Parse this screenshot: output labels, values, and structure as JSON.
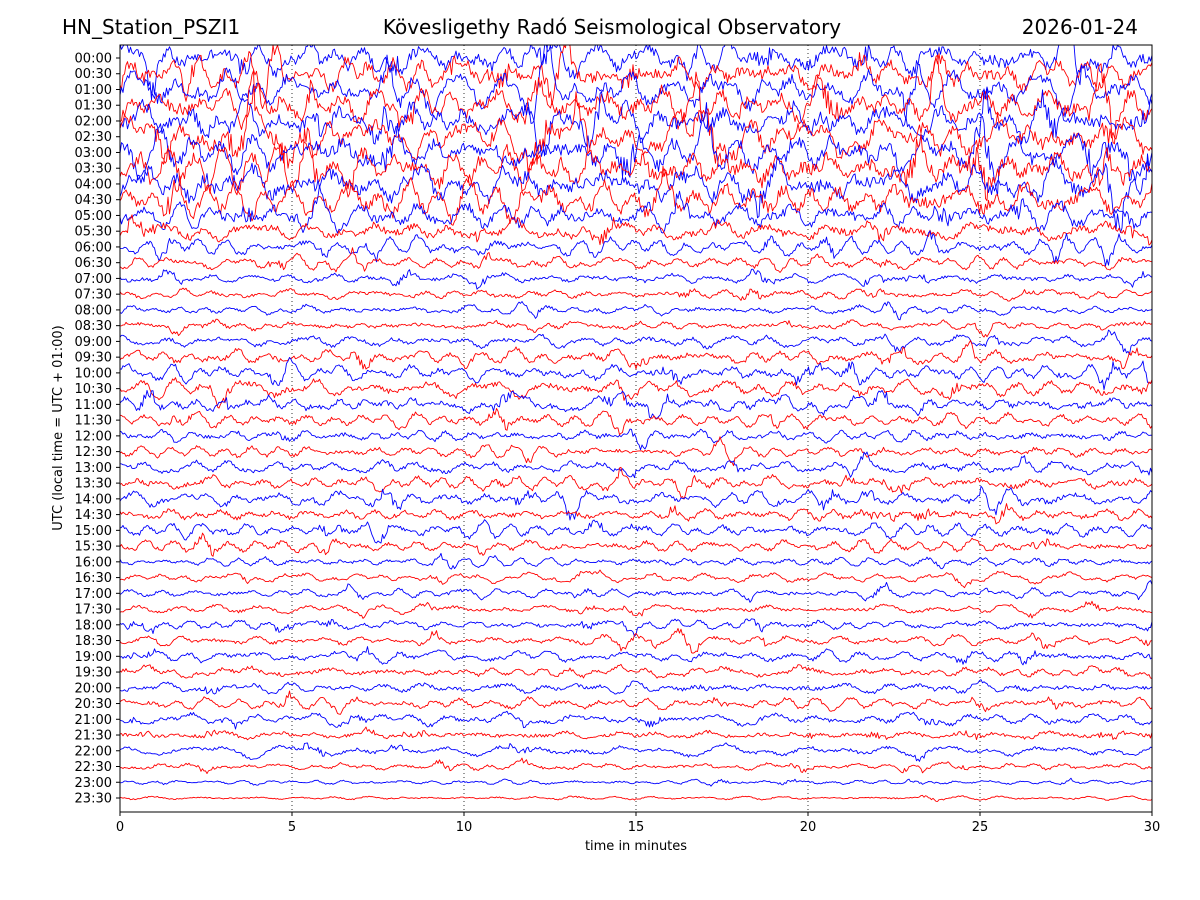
{
  "header": {
    "station": "HN_Station_PSZI1",
    "observatory": "Kövesligethy Radó Seismological Observatory",
    "date": "2026-01-24"
  },
  "chart_data": {
    "type": "line",
    "title": "Kövesligethy Radó Seismological Observatory",
    "xlabel": "time in minutes",
    "ylabel": "UTC (local time = UTC + 01:00)",
    "xlim": [
      0,
      30
    ],
    "xticks": [
      0,
      5,
      10,
      15,
      20,
      25,
      30
    ],
    "grid": "vertical dotted lines at x = 5, 10, 15, 20, 25",
    "colors": [
      "#0000ff",
      "#ff0000"
    ],
    "rows": [
      "00:00",
      "00:30",
      "01:00",
      "01:30",
      "02:00",
      "02:30",
      "03:00",
      "03:30",
      "04:00",
      "04:30",
      "05:00",
      "05:30",
      "06:00",
      "06:30",
      "07:00",
      "07:30",
      "08:00",
      "08:30",
      "09:00",
      "09:30",
      "10:00",
      "10:30",
      "11:00",
      "11:30",
      "12:00",
      "12:30",
      "13:00",
      "13:30",
      "14:00",
      "14:30",
      "15:00",
      "15:30",
      "16:00",
      "16:30",
      "17:00",
      "17:30",
      "18:00",
      "18:30",
      "19:00",
      "19:30",
      "20:00",
      "20:30",
      "21:00",
      "21:30",
      "22:00",
      "22:30",
      "23:00",
      "23:30"
    ],
    "relative_amplitude": [
      3.2,
      3.3,
      3.4,
      3.6,
      3.7,
      3.8,
      3.9,
      4.0,
      3.8,
      3.4,
      2.8,
      2.0,
      1.4,
      1.15,
      1.0,
      0.9,
      0.9,
      0.95,
      1.1,
      1.3,
      1.5,
      1.6,
      1.5,
      1.25,
      1.15,
      1.1,
      1.2,
      1.35,
      1.45,
      1.3,
      1.3,
      1.15,
      0.85,
      0.8,
      0.8,
      0.85,
      0.95,
      0.95,
      1.0,
      1.05,
      1.05,
      1.05,
      1.05,
      1.0,
      0.95,
      0.7,
      0.45,
      0.4
    ]
  }
}
